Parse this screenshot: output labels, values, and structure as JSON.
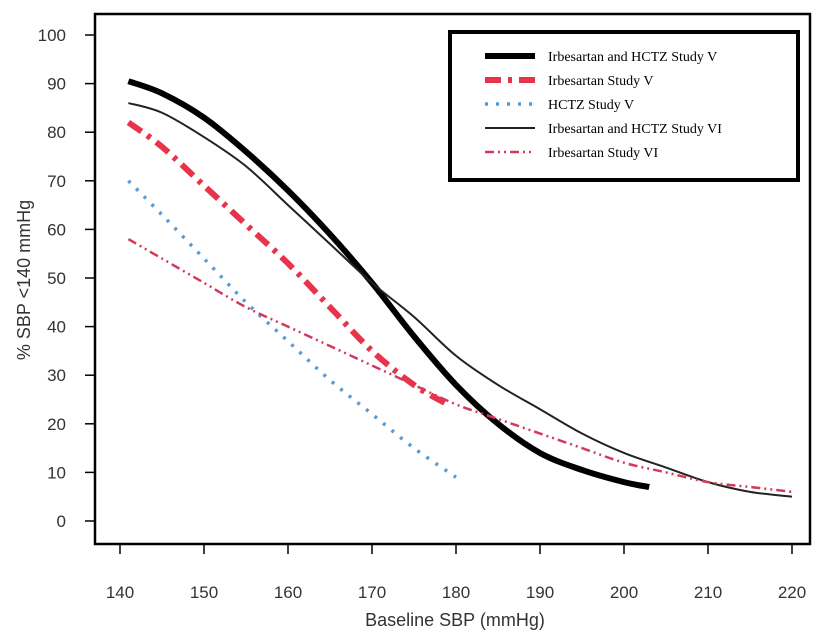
{
  "chart_data": {
    "type": "line",
    "xlabel": "Baseline SBP (mmHg)",
    "ylabel": "% SBP <140 mmHg",
    "xlim": [
      140,
      220
    ],
    "ylim": [
      0,
      100
    ],
    "xticks": [
      140,
      150,
      160,
      170,
      180,
      190,
      200,
      210,
      220
    ],
    "yticks": [
      0,
      10,
      20,
      30,
      40,
      50,
      60,
      70,
      80,
      90,
      100
    ],
    "grid": false,
    "legend_position": "top-right",
    "series": [
      {
        "name": "Irbesartan and HCTZ Study V",
        "color": "#000000",
        "style": "solid-thick",
        "x": [
          141,
          145,
          150,
          155,
          160,
          165,
          170,
          175,
          180,
          185,
          190,
          195,
          200,
          203
        ],
        "y": [
          90.5,
          88,
          83,
          76,
          68,
          59,
          49,
          38,
          28,
          20,
          14,
          10.5,
          8,
          7
        ]
      },
      {
        "name": "Irbesartan Study V",
        "color": "#e8334a",
        "style": "dashdot-thick",
        "x": [
          141,
          145,
          150,
          155,
          160,
          165,
          170,
          175,
          179
        ],
        "y": [
          82,
          77,
          69,
          61,
          53,
          44,
          35,
          28,
          24
        ]
      },
      {
        "name": "HCTZ Study V",
        "color": "#5b9bd5",
        "style": "dotted",
        "x": [
          141,
          145,
          150,
          155,
          160,
          165,
          170,
          175,
          180
        ],
        "y": [
          70,
          63,
          54,
          45,
          37,
          29,
          22,
          15,
          9
        ]
      },
      {
        "name": "Irbesartan and HCTZ Study VI",
        "color": "#222222",
        "style": "solid-thin",
        "x": [
          141,
          145,
          150,
          155,
          160,
          165,
          170,
          175,
          180,
          185,
          190,
          195,
          200,
          205,
          210,
          215,
          220
        ],
        "y": [
          86,
          84,
          79,
          73,
          65,
          57,
          49,
          42,
          34,
          28,
          23,
          18,
          14,
          11,
          8,
          6,
          5
        ]
      },
      {
        "name": "Irbesartan Study VI",
        "color": "#d23a5c",
        "style": "dashdotdot",
        "x": [
          141,
          145,
          150,
          155,
          160,
          165,
          170,
          175,
          180,
          185,
          190,
          195,
          200,
          205,
          210,
          215,
          220
        ],
        "y": [
          58,
          54,
          49,
          44,
          40,
          36,
          32,
          28,
          24,
          21,
          18,
          15,
          12,
          10,
          8,
          7,
          6
        ]
      }
    ]
  }
}
